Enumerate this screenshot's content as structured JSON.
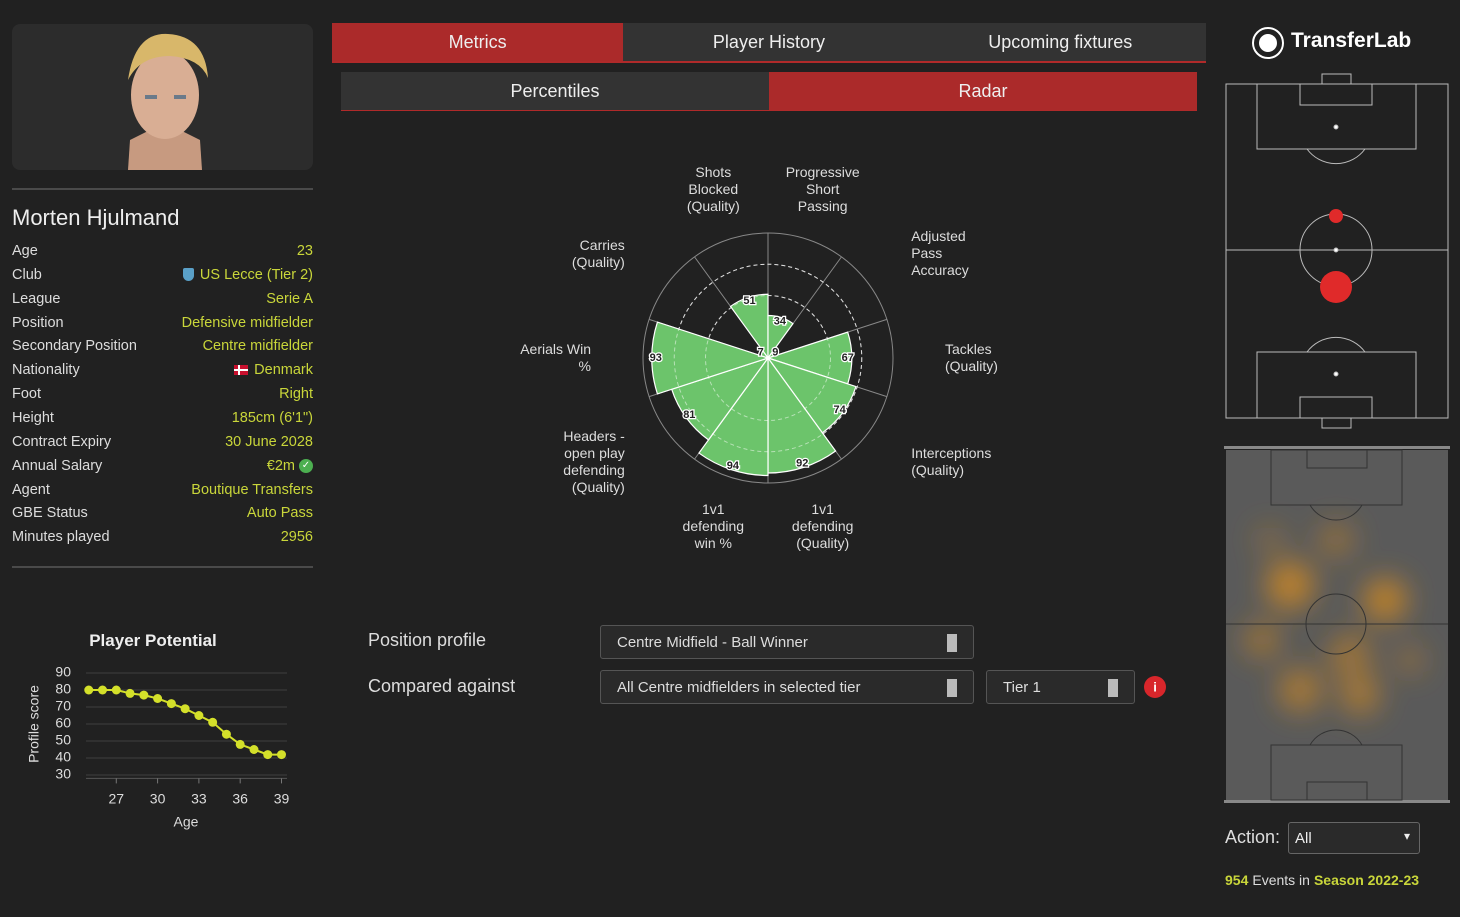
{
  "brand": "TransferLab",
  "tabs": [
    "Metrics",
    "Player History",
    "Upcoming fixtures"
  ],
  "subtabs": [
    "Percentiles",
    "Radar"
  ],
  "player": {
    "name": "Morten Hjulmand",
    "fields": [
      {
        "label": "Age",
        "value": "23"
      },
      {
        "label": "Club",
        "value": "US Lecce (Tier 2)"
      },
      {
        "label": "League",
        "value": "Serie A"
      },
      {
        "label": "Position",
        "value": "Defensive midfielder"
      },
      {
        "label": "Secondary Position",
        "value": "Centre midfielder"
      },
      {
        "label": "Nationality",
        "value": "Denmark"
      },
      {
        "label": "Foot",
        "value": "Right"
      },
      {
        "label": "Height",
        "value": "185cm (6'1\")"
      },
      {
        "label": "Contract Expiry",
        "value": "30 June 2028"
      },
      {
        "label": "Annual Salary",
        "value": "€2m"
      },
      {
        "label": "Agent",
        "value": "Boutique Transfers"
      },
      {
        "label": "GBE Status",
        "value": "Auto Pass"
      },
      {
        "label": "Minutes played",
        "value": "2956"
      }
    ]
  },
  "chart_data": [
    {
      "type": "polar_bar",
      "categories": [
        "Shots Blocked (Quality)",
        "Progressive Short Passing",
        "Adjusted Pass Accuracy",
        "Tackles (Quality)",
        "Interceptions (Quality)",
        "1v1 defending (Quality)",
        "1v1 defending win %",
        "Headers - open play defending (Quality)",
        "Aerials Win %",
        "Carries (Quality)"
      ],
      "values": [
        51,
        34,
        9,
        67,
        74,
        92,
        94,
        81,
        93,
        7
      ],
      "color": "#6cc46b",
      "rlim": [
        0,
        100
      ],
      "rticks": [
        50,
        75
      ]
    },
    {
      "type": "line",
      "title": "Player Potential",
      "x_label": "Age",
      "y_label": "Profile score",
      "x": [
        25,
        26,
        27,
        28,
        29,
        30,
        31,
        32,
        33,
        34,
        35,
        36,
        37,
        38,
        39
      ],
      "values": [
        80,
        80,
        80,
        78,
        77,
        75,
        72,
        69,
        65,
        61,
        54,
        48,
        45,
        42,
        42
      ],
      "color": "#d4e02a",
      "xlim": [
        24.8,
        39.4
      ],
      "ylim": [
        28,
        92
      ],
      "xticks": [
        27,
        30,
        33,
        36,
        39
      ],
      "yticks": [
        30,
        40,
        50,
        60,
        70,
        80,
        90
      ],
      "grid": true
    }
  ],
  "position_profile": {
    "label": "Position profile",
    "value": "Centre Midfield - Ball Winner"
  },
  "compared_against": {
    "label": "Compared against",
    "value": "All Centre midfielders in selected tier",
    "tier": "Tier 1"
  },
  "action": {
    "label": "Action:",
    "value": "All"
  },
  "events": {
    "count": 954,
    "text": "Events in",
    "season": "Season 2022-23"
  }
}
